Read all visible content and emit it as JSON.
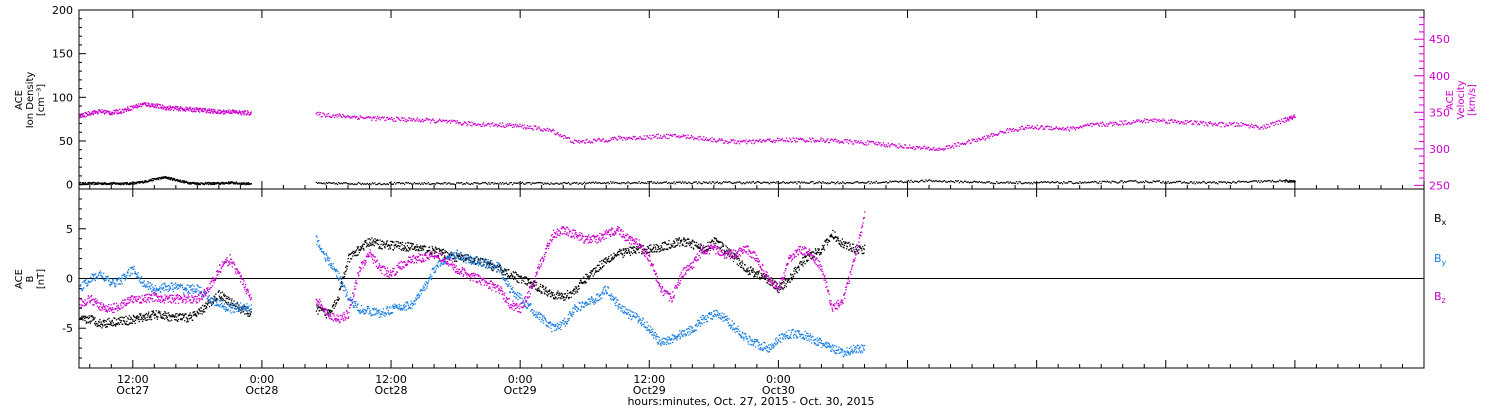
{
  "chart_data": [
    {
      "type": "scatter",
      "panel": "top",
      "ylabel_left_lines": [
        "ACE",
        "Ion Density",
        "[cm⁻³]"
      ],
      "ylabel_right_lines": [
        "ACE",
        "Velocity",
        "[km/s]"
      ],
      "ylim_left": [
        -5,
        200
      ],
      "yticks_left": [
        "0",
        "50",
        "100",
        "150",
        "200"
      ],
      "ylim_right": [
        245,
        490
      ],
      "yticks_right": [
        "250",
        "300",
        "350",
        "400",
        "450"
      ],
      "colors": {
        "density": "#000000",
        "velocity": "#cc00cc"
      },
      "series": [
        {
          "axis": "left",
          "color": "#000000",
          "segments": [
            {
              "x": [
                7,
                8,
                9,
                10,
                11,
                12,
                13,
                14,
                15,
                16,
                17,
                18,
                19,
                20,
                21,
                22,
                23
              ],
              "y": [
                2,
                2,
                2,
                2,
                2,
                2,
                4,
                7,
                9,
                6,
                3,
                2,
                2,
                2,
                3,
                2,
                2
              ]
            },
            {
              "x": [
                29,
                32,
                35,
                38,
                41,
                44,
                47,
                50,
                53,
                56,
                59,
                62,
                65,
                68,
                71,
                74,
                77,
                80,
                83,
                86,
                89,
                92,
                95,
                98,
                101,
                104,
                107,
                110,
                113,
                116,
                119,
                120
              ],
              "y": [
                2,
                2,
                2,
                2,
                2,
                2,
                2,
                2,
                2,
                3,
                3,
                3,
                3,
                3,
                3,
                3,
                3,
                3,
                4,
                5,
                4,
                3,
                3,
                3,
                3,
                4,
                4,
                3,
                3,
                4,
                5,
                4
              ]
            }
          ]
        },
        {
          "axis": "right",
          "color": "#cc00cc",
          "segments": [
            {
              "x": [
                7,
                8,
                9,
                10,
                11,
                12,
                13,
                14,
                15,
                16,
                17,
                18,
                19,
                20,
                21,
                22,
                23
              ],
              "y": [
                345,
                350,
                352,
                350,
                353,
                358,
                362,
                360,
                357,
                356,
                355,
                354,
                353,
                351,
                352,
                350,
                350
              ]
            },
            {
              "x": [
                29,
                31,
                33,
                35,
                37,
                39,
                41,
                43,
                45,
                47,
                49,
                51,
                53,
                55,
                57,
                59,
                61,
                63,
                65,
                67,
                69,
                71,
                73,
                75,
                77,
                79,
                81,
                83,
                85,
                87,
                89,
                91,
                93,
                95,
                97,
                99,
                101,
                103,
                105,
                107,
                109,
                111,
                113,
                115,
                117,
                119,
                120
              ],
              "y": [
                348,
                346,
                344,
                342,
                341,
                340,
                338,
                335,
                334,
                333,
                330,
                325,
                310,
                312,
                315,
                316,
                318,
                318,
                315,
                311,
                310,
                312,
                313,
                313,
                312,
                310,
                308,
                305,
                302,
                300,
                308,
                315,
                325,
                330,
                330,
                328,
                333,
                335,
                338,
                340,
                338,
                336,
                334,
                334,
                330,
                340,
                345
              ]
            }
          ]
        }
      ]
    },
    {
      "type": "scatter",
      "panel": "bottom",
      "ylabel_lines": [
        "ACE",
        "B",
        "[nT]"
      ],
      "ylim": [
        -9,
        9
      ],
      "yticks": [
        "-5",
        "0",
        "5"
      ],
      "xlabel": "hours:minutes, Oct. 27, 2015 - Oct. 30, 2015",
      "xlim": [
        7,
        132
      ],
      "xticks": [
        {
          "time": "12:00",
          "date": "Oct27",
          "x": 12
        },
        {
          "time": "0:00",
          "date": "Oct28",
          "x": 24
        },
        {
          "time": "12:00",
          "date": "Oct28",
          "x": 36
        },
        {
          "time": "0:00",
          "date": "Oct29",
          "x": 48
        },
        {
          "time": "12:00",
          "date": "Oct29",
          "x": 60
        },
        {
          "time": "0:00",
          "date": "Oct30",
          "x": 72
        }
      ],
      "legend": [
        {
          "base": "B",
          "sub": "x",
          "color": "#000000"
        },
        {
          "base": "B",
          "sub": "y",
          "color": "#1a7fe0"
        },
        {
          "base": "B",
          "sub": "z",
          "color": "#cc00cc"
        }
      ],
      "series": [
        {
          "name": "Bx",
          "color": "#000000",
          "segments": [
            {
              "x": [
                7,
                8,
                9,
                10,
                11,
                12,
                13,
                14,
                15,
                16,
                17,
                18,
                19,
                20,
                21,
                22,
                23
              ],
              "y": [
                -4.2,
                -4.0,
                -4.5,
                -4.3,
                -4.2,
                -4.1,
                -3.8,
                -3.6,
                -3.7,
                -3.9,
                -3.9,
                -3.5,
                -2.5,
                -1.5,
                -2.3,
                -3.0,
                -3.5
              ]
            },
            {
              "x": [
                29,
                30,
                31,
                32,
                33,
                34,
                35,
                36,
                37,
                38,
                39,
                40,
                41,
                42,
                43,
                44,
                45,
                46,
                47,
                48,
                49,
                50,
                51,
                52,
                53,
                54,
                55,
                56,
                57,
                58,
                59,
                60,
                61,
                62,
                63,
                64,
                65,
                66,
                67,
                68,
                69,
                70,
                71,
                72,
                73,
                74,
                75,
                76,
                77,
                78,
                79,
                80
              ],
              "y": [
                -3.0,
                -3.5,
                -2.0,
                2.0,
                3.0,
                3.8,
                3.5,
                3.4,
                3.3,
                3.2,
                3.0,
                2.8,
                2.5,
                2.2,
                2.0,
                1.8,
                1.5,
                1.0,
                0.5,
                0.0,
                -0.5,
                -1.0,
                -1.5,
                -1.8,
                -1.2,
                0.0,
                1.0,
                2.0,
                2.5,
                2.8,
                3.0,
                3.0,
                3.2,
                3.5,
                3.8,
                3.5,
                3.0,
                3.8,
                3.0,
                2.0,
                1.0,
                0.5,
                0.0,
                -1.0,
                0.0,
                1.5,
                2.5,
                3.0,
                4.5,
                3.5,
                3.0,
                3.0
              ]
            }
          ]
        },
        {
          "name": "By",
          "color": "#1a7fe0",
          "segments": [
            {
              "x": [
                7,
                8,
                9,
                10,
                11,
                12,
                13,
                14,
                15,
                16,
                17,
                18,
                19,
                20,
                21,
                22,
                23
              ],
              "y": [
                -1.0,
                0.0,
                0.5,
                -0.5,
                0.0,
                1.0,
                -0.5,
                -1.0,
                -0.8,
                -0.8,
                -1.0,
                -1.0,
                -2.0,
                -2.5,
                -3.0,
                -2.8,
                -3.0
              ]
            },
            {
              "x": [
                29,
                30,
                31,
                32,
                33,
                34,
                35,
                36,
                37,
                38,
                39,
                40,
                41,
                42,
                43,
                44,
                45,
                46,
                47,
                48,
                49,
                50,
                51,
                52,
                53,
                54,
                55,
                56,
                57,
                58,
                59,
                60,
                61,
                62,
                63,
                64,
                65,
                66,
                67,
                68,
                69,
                70,
                71,
                72,
                73,
                74,
                75,
                76,
                77,
                78,
                79,
                80
              ],
              "y": [
                4.0,
                2.0,
                0.5,
                -2.0,
                -3.0,
                -3.2,
                -3.5,
                -3.0,
                -2.8,
                -2.5,
                -1.0,
                1.0,
                2.0,
                2.5,
                2.0,
                1.8,
                1.5,
                1.2,
                -1.0,
                -2.0,
                -3.0,
                -4.0,
                -5.0,
                -4.5,
                -3.0,
                -2.5,
                -2.0,
                -1.0,
                -2.5,
                -3.5,
                -4.0,
                -5.0,
                -6.5,
                -6.0,
                -5.5,
                -5.0,
                -4.0,
                -3.5,
                -4.0,
                -5.0,
                -6.0,
                -6.5,
                -7.0,
                -6.0,
                -5.5,
                -5.5,
                -6.0,
                -6.5,
                -7.0,
                -7.5,
                -7.0,
                -7.0
              ]
            }
          ]
        },
        {
          "name": "Bz",
          "color": "#cc00cc",
          "segments": [
            {
              "x": [
                7,
                8,
                9,
                10,
                11,
                12,
                13,
                14,
                15,
                16,
                17,
                18,
                19,
                20,
                21,
                22,
                23
              ],
              "y": [
                -2.5,
                -2.0,
                -2.8,
                -3.0,
                -2.5,
                -2.0,
                -2.0,
                -1.8,
                -2.0,
                -2.0,
                -2.0,
                -2.0,
                -1.0,
                1.0,
                2.0,
                0.0,
                -2.0
              ]
            },
            {
              "x": [
                29,
                30,
                31,
                32,
                33,
                34,
                35,
                36,
                37,
                38,
                39,
                40,
                41,
                42,
                43,
                44,
                45,
                46,
                47,
                48,
                49,
                50,
                51,
                52,
                53,
                54,
                55,
                56,
                57,
                58,
                59,
                60,
                61,
                62,
                63,
                64,
                65,
                66,
                67,
                68,
                69,
                70,
                71,
                72,
                73,
                74,
                75,
                76,
                77,
                78,
                79,
                80
              ],
              "y": [
                -2.0,
                -3.5,
                -4.0,
                -3.5,
                1.0,
                2.5,
                1.0,
                0.5,
                1.5,
                2.0,
                2.2,
                2.5,
                2.0,
                1.0,
                0.5,
                0.0,
                -0.5,
                -1.0,
                -2.5,
                -3.0,
                -1.0,
                2.0,
                4.5,
                5.0,
                4.5,
                4.0,
                4.0,
                4.5,
                5.0,
                4.0,
                3.5,
                2.0,
                -1.0,
                -2.0,
                0.5,
                1.5,
                3.0,
                3.0,
                2.5,
                2.5,
                3.0,
                2.0,
                0.0,
                -1.0,
                2.0,
                3.0,
                2.5,
                1.0,
                -3.0,
                -2.0,
                2.0,
                6.5
              ]
            }
          ]
        }
      ]
    }
  ]
}
